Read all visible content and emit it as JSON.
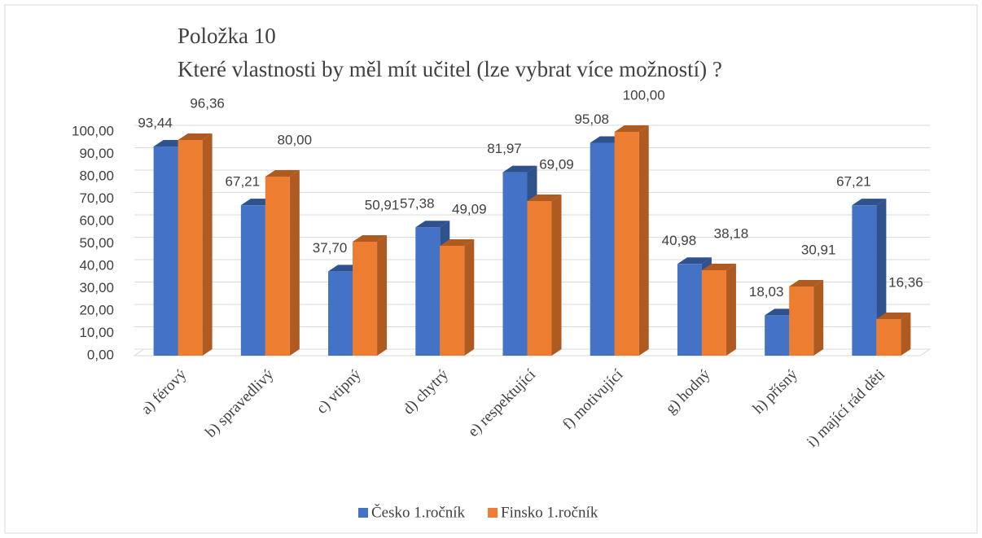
{
  "chart_data": {
    "type": "bar3d",
    "title": "Položka 10",
    "subtitle": "Které vlastnosti by měl mít učitel (lze vybrat více možností) ?",
    "categories": [
      "a) férový",
      "b) spravedlivý",
      "c) vtipný",
      "d) chytrý",
      "e) respektující",
      "f) motivující",
      "g) hodný",
      "h) přísný",
      "i) mající rád děti"
    ],
    "series": [
      {
        "name": "Česko 1.ročník",
        "color": "#4472c4",
        "side_color": "#2f528f",
        "values": [
          93.44,
          67.21,
          37.7,
          57.38,
          81.97,
          95.08,
          40.98,
          18.03,
          67.21
        ],
        "value_labels": [
          "93,44",
          "67,21",
          "37,70",
          "57,38",
          "81,97",
          "95,08",
          "40,98",
          "18,03",
          "67,21"
        ]
      },
      {
        "name": "Finsko 1.ročník",
        "color": "#ed7d31",
        "side_color": "#ae5a21",
        "values": [
          96.36,
          80.0,
          50.91,
          49.09,
          69.09,
          100.0,
          38.18,
          30.91,
          16.36
        ],
        "value_labels": [
          "96,36",
          "80,00",
          "50,91",
          "49,09",
          "69,09",
          "100,00",
          "38,18",
          "30,91",
          "16,36"
        ]
      }
    ],
    "ylim": [
      0,
      100
    ],
    "yticks": [
      {
        "value": 0,
        "label": "0,00"
      },
      {
        "value": 10,
        "label": "10,00"
      },
      {
        "value": 20,
        "label": "20,00"
      },
      {
        "value": 30,
        "label": "30,00"
      },
      {
        "value": 40,
        "label": "40,00"
      },
      {
        "value": 50,
        "label": "50,00"
      },
      {
        "value": 60,
        "label": "60,00"
      },
      {
        "value": 70,
        "label": "70,00"
      },
      {
        "value": 80,
        "label": "80,00"
      },
      {
        "value": 90,
        "label": "90,00"
      },
      {
        "value": 100,
        "label": "100,00"
      }
    ],
    "grid": true,
    "legend": "bottom"
  }
}
